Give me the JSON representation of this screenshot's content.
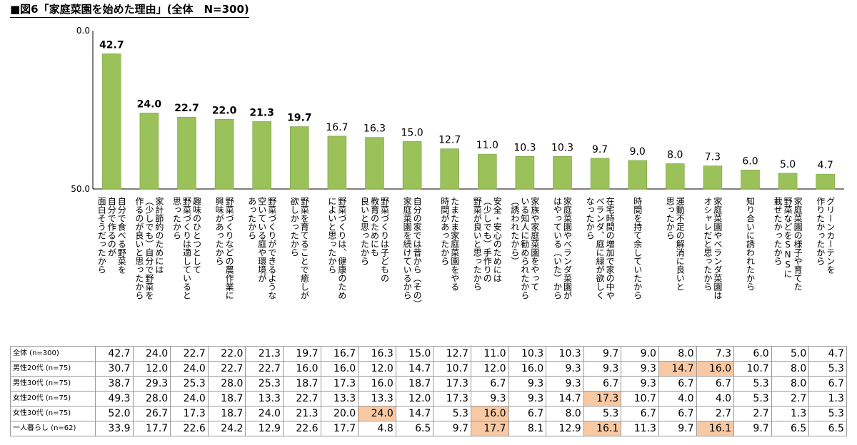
{
  "title": "■図6「家庭菜園を始めた理由」(全体　N=300)",
  "colors": {
    "bar": "#9bc15a",
    "bar_edge": "#7fa44a",
    "highlight": "#f9c9a4"
  },
  "chart_data": {
    "type": "bar",
    "title": "■図6「家庭菜園を始めた理由」(全体　N=300)",
    "ylim": [
      0,
      50
    ],
    "yticks": [
      "0.0",
      "50.0"
    ],
    "categories": [
      "自分で食べる野菜を自分で作るのが面白そうだったから",
      "家計節約のためには(少しでも)自分で野菜を作るのが良いと思ったから",
      "趣味のひとつとして野菜づくりは適していると思ったから",
      "野菜づくりなどの農作業に興味があったから",
      "野菜づくりができるような空いている庭や環境があったから",
      "野菜を育てることで癒しが欲しかったから",
      "野菜づくりは、健康のためによいと思ったから",
      "野菜づくりは子どもの教育のためにも良いと思ったから",
      "自分の家では昔から(その)家庭菜園を続けているから",
      "たまたま家庭菜園をやる時間があったから",
      "安全・安心のためには(少しでも)手作りの野菜が良いと思ったから",
      "家族や家庭菜園をやっている知人に勧められたから(誘われたから)",
      "家庭菜園やベランダ菜園がはやっている(いた)から",
      "在宅時間の増加で家の中やベランダ、庭に緑が欲しくなったから",
      "時間を持て余していたから",
      "運動不足の解消に良いと思ったから",
      "家庭菜園やベランダ菜園はオシャレだと思ったから",
      "知り合いに誘われたから",
      "家庭菜園の様子や育てた野菜などをSNSに載せたかったから",
      "グリーンカーテンを作りたかったから"
    ],
    "category_lines": [
      [
        "自分で食べる野菜を",
        "自分で作るのが",
        "面白そうだったから"
      ],
      [
        "家計節約のためには",
        "（少しでも）自分で野菜を",
        "作るのが良いと思ったから"
      ],
      [
        "趣味のひとつとして",
        "野菜づくりは適していると",
        "思ったから"
      ],
      [
        "野菜づくりなどの農作業に",
        "興味があったから"
      ],
      [
        "野菜づくりができるような",
        "空いている庭や環境が",
        "あったから"
      ],
      [
        "野菜を育てることで癒しが",
        "欲しかったから"
      ],
      [
        "野菜づくりは、健康のため",
        "によいと思ったから"
      ],
      [
        "野菜づくりは子どもの",
        "教育のためにも",
        "良いと思ったから"
      ],
      [
        "自分の家では昔から（その）",
        "家庭菜園を続けているから"
      ],
      [
        "たまたま家庭菜園をやる",
        "時間があったから"
      ],
      [
        "安全・安心のためには",
        "（少しでも）手作りの",
        "野菜が良いと思ったから"
      ],
      [
        "家族や家庭菜園をやって",
        "いる知人に勧められたから",
        "（誘われたから）"
      ],
      [
        "家庭菜園やベランダ菜園が",
        "はやっている（いた）から"
      ],
      [
        "在宅時間の増加で家の中や",
        "ベランダ、庭に緑が欲しく",
        "なったから"
      ],
      [
        "時間を持て余していたから"
      ],
      [
        "運動不足の解消に良いと",
        "思ったから"
      ],
      [
        "家庭菜園やベランダ菜園は",
        "オシャレだと思ったから"
      ],
      [
        "知り合いに誘われたから"
      ],
      [
        "家庭菜園の様子や育てた",
        "野菜などをSNSに",
        "載せたかったから"
      ],
      [
        "グリーンカーテンを",
        "作りたかったから"
      ]
    ],
    "values": [
      42.7,
      24.0,
      22.7,
      22.0,
      21.3,
      19.7,
      16.7,
      16.3,
      15.0,
      12.7,
      11.0,
      10.3,
      10.3,
      9.7,
      9.0,
      8.0,
      7.3,
      6.0,
      5.0,
      4.7
    ],
    "value_labels": [
      "42.7",
      "24.0",
      "22.7",
      "22.0",
      "21.3",
      "19.7",
      "16.7",
      "16.3",
      "15.0",
      "12.7",
      "11.0",
      "10.3",
      "10.3",
      "9.7",
      "9.0",
      "8.0",
      "7.3",
      "6.0",
      "5.0",
      "4.7"
    ],
    "bold_label_count": 6
  },
  "table": {
    "rows": [
      {
        "label": "全体 (n=300)",
        "cells": [
          "42.7",
          "24.0",
          "22.7",
          "22.0",
          "21.3",
          "19.7",
          "16.7",
          "16.3",
          "15.0",
          "12.7",
          "11.0",
          "10.3",
          "10.3",
          "9.7",
          "9.0",
          "8.0",
          "7.3",
          "6.0",
          "5.0",
          "4.7"
        ],
        "highlight": []
      },
      {
        "label": "男性20代 (n=75)",
        "cells": [
          "30.7",
          "12.0",
          "24.0",
          "22.7",
          "22.7",
          "16.0",
          "16.0",
          "12.0",
          "14.7",
          "10.7",
          "12.0",
          "16.0",
          "9.3",
          "9.3",
          "9.3",
          "14.7",
          "16.0",
          "10.7",
          "8.0",
          "5.3"
        ],
        "highlight": [
          15,
          16
        ]
      },
      {
        "label": "男性30代 (n=75)",
        "cells": [
          "38.7",
          "29.3",
          "25.3",
          "28.0",
          "25.3",
          "18.7",
          "17.3",
          "16.0",
          "18.7",
          "17.3",
          "6.7",
          "9.3",
          "9.3",
          "6.7",
          "9.3",
          "6.7",
          "6.7",
          "5.3",
          "8.0",
          "6.7"
        ],
        "highlight": []
      },
      {
        "label": "女性20代 (n=75)",
        "cells": [
          "49.3",
          "28.0",
          "24.0",
          "18.7",
          "13.3",
          "22.7",
          "13.3",
          "13.3",
          "12.0",
          "17.3",
          "9.3",
          "9.3",
          "14.7",
          "17.3",
          "10.7",
          "4.0",
          "4.0",
          "5.3",
          "2.7",
          "1.3"
        ],
        "highlight": [
          13
        ]
      },
      {
        "label": "女性30代 (n=75)",
        "cells": [
          "52.0",
          "26.7",
          "17.3",
          "18.7",
          "24.0",
          "21.3",
          "20.0",
          "24.0",
          "14.7",
          "5.3",
          "16.0",
          "6.7",
          "8.0",
          "5.3",
          "6.7",
          "6.7",
          "2.7",
          "2.7",
          "1.3",
          "5.3"
        ],
        "highlight": [
          7,
          10
        ]
      },
      {
        "label": "一人暮らし (n=62)",
        "cells": [
          "33.9",
          "17.7",
          "22.6",
          "24.2",
          "12.9",
          "22.6",
          "17.7",
          "4.8",
          "6.5",
          "9.7",
          "17.7",
          "8.1",
          "12.9",
          "16.1",
          "11.3",
          "9.7",
          "16.1",
          "9.7",
          "6.5",
          "6.5"
        ],
        "highlight": [
          10,
          13,
          16
        ]
      }
    ]
  }
}
